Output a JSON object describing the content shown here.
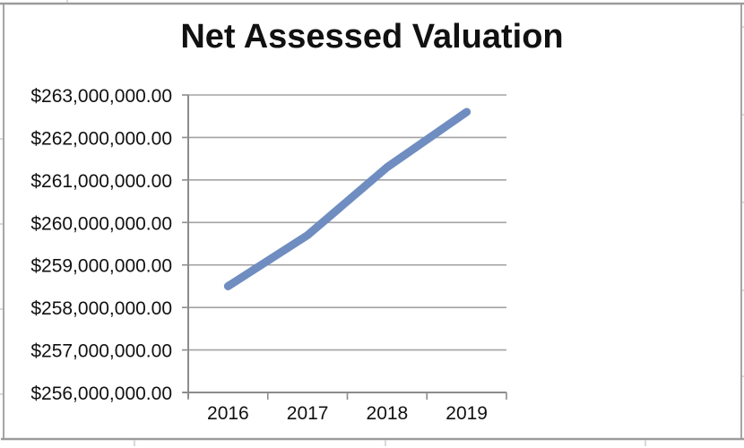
{
  "page": {
    "title": "Net Assessed Valuation"
  },
  "chart_data": {
    "type": "line",
    "title": "Net Assessed Valuation",
    "categories": [
      "2016",
      "2017",
      "2018",
      "2019"
    ],
    "series": [
      {
        "name": "Net Assessed Valuation",
        "values": [
          258500000,
          259700000,
          261300000,
          262600000
        ]
      }
    ],
    "ylim": [
      256000000,
      263000000
    ],
    "ytick_interval": 1000000,
    "ytick_labels_bottom_to_top": [
      "$256,000,000.00",
      "$257,000,000.00",
      "$258,000,000.00",
      "$259,000,000.00",
      "$260,000,000.00",
      "$261,000,000.00",
      "$262,000,000.00",
      "$263,000,000.00"
    ],
    "xlabel": "",
    "ylabel": "",
    "grid": true,
    "legend": false
  },
  "colors": {
    "series_line": "#6f8dc0",
    "gridline": "#a3a3a3",
    "axis": "#8c8c8c",
    "text": "#111111",
    "frame_border": "#9b9b9b",
    "artifact": "#cccccc",
    "background": "#ffffff"
  }
}
